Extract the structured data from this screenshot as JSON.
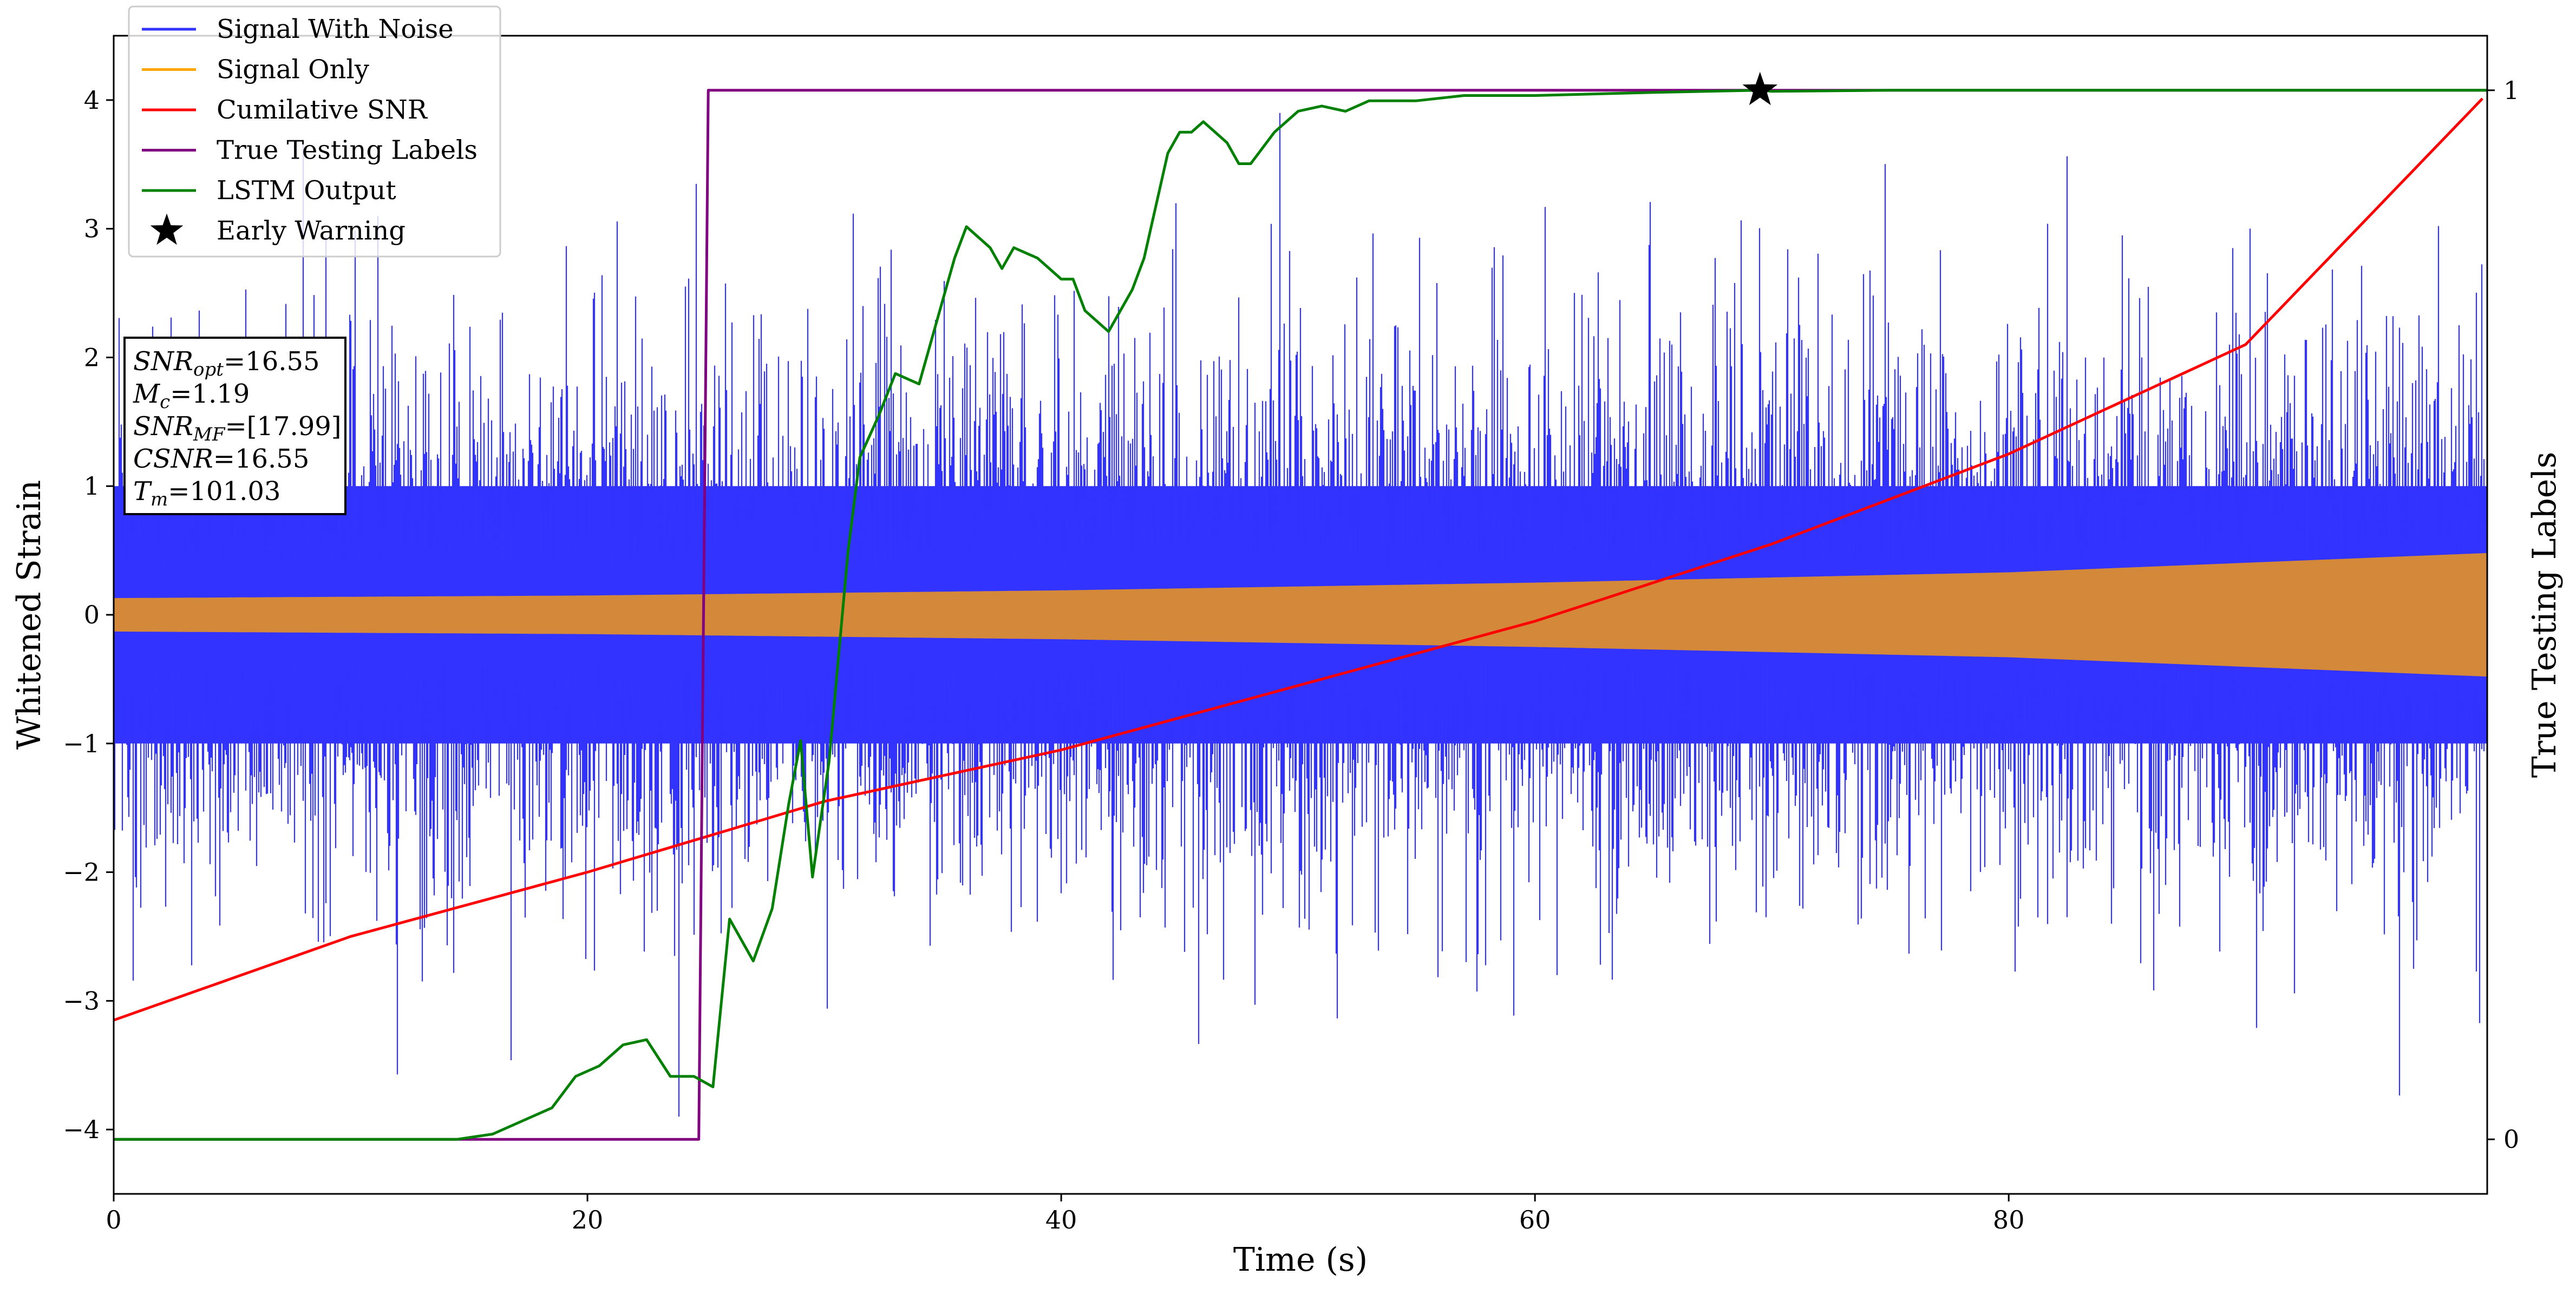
{
  "chart_data": {
    "type": "line",
    "xlabel": "Time (s)",
    "ylabel": "Whitened Strain",
    "y2label": "True Testing Labels",
    "xlim": [
      0,
      100.2
    ],
    "ylim": [
      -4.5,
      4.5
    ],
    "y2lim": [
      -0.052,
      1.052
    ],
    "xticks": [
      0,
      20,
      40,
      60,
      80
    ],
    "yticks": [
      -4,
      -3,
      -2,
      -1,
      0,
      1,
      2,
      3,
      4
    ],
    "y2ticks": [
      0,
      1
    ],
    "legend_position": "top-left",
    "grid": false,
    "legend": [
      {
        "name": "Signal With Noise",
        "color": "#3333ff",
        "marker": "line"
      },
      {
        "name": "Signal Only",
        "color": "#ffa500",
        "marker": "line"
      },
      {
        "name": "Cumilative SNR",
        "color": "#ff0000",
        "marker": "line"
      },
      {
        "name": "True Testing Labels",
        "color": "#800080",
        "marker": "line"
      },
      {
        "name": "LSTM Output",
        "color": "#008000",
        "marker": "line"
      },
      {
        "name": "Early Warning",
        "color": "#000000",
        "marker": "star"
      }
    ],
    "annotation_box": [
      {
        "base": "SNR",
        "sub": "opt",
        "value": "=16.55"
      },
      {
        "base": "M",
        "sub": "c",
        "value": "=1.19"
      },
      {
        "base": "SNR",
        "sub": "MF",
        "value": "=[17.99]"
      },
      {
        "base": "CSNR",
        "sub": "",
        "value": "=16.55"
      },
      {
        "base": "T",
        "sub": "m",
        "value": "=101.03"
      }
    ],
    "series": [
      {
        "name": "Signal With Noise",
        "axis": "left",
        "kind": "noise_band",
        "color": "#3333ff",
        "t_range": [
          0,
          100.2
        ],
        "core_half_width": 1.0,
        "spike_max": 3.9
      },
      {
        "name": "Signal Only",
        "axis": "left",
        "kind": "chirp_envelope",
        "color": "#d4893a",
        "t": [
          0,
          20,
          40,
          60,
          80,
          100.2
        ],
        "amplitude": [
          0.13,
          0.15,
          0.19,
          0.25,
          0.33,
          0.48
        ]
      },
      {
        "name": "Cumilative SNR",
        "axis": "left",
        "color": "#ff0000",
        "t": [
          0,
          10,
          20,
          30,
          40,
          50,
          60,
          70,
          80,
          90,
          100.2
        ],
        "y": [
          -3.15,
          -2.5,
          -2.0,
          -1.45,
          -1.05,
          -0.55,
          -0.05,
          0.55,
          1.25,
          2.1,
          4.05
        ]
      },
      {
        "name": "True Testing Labels",
        "axis": "right",
        "color": "#800080",
        "t": [
          0,
          24.7,
          25.1,
          100.2
        ],
        "y": [
          0,
          0,
          1,
          1
        ]
      },
      {
        "name": "LSTM Output",
        "axis": "right",
        "color": "#008000",
        "t": [
          0,
          14.5,
          16,
          17.5,
          18.5,
          19.5,
          20.5,
          21.5,
          22.5,
          23.5,
          24.5,
          25.3,
          26,
          27,
          27.8,
          28.5,
          29,
          29.5,
          30.2,
          31,
          31.5,
          32.3,
          33,
          34,
          35,
          35.5,
          36,
          37,
          37.5,
          38,
          39,
          40,
          40.5,
          41,
          42,
          43,
          43.5,
          44,
          44.5,
          45,
          45.5,
          46,
          47,
          47.5,
          48,
          49,
          50,
          51,
          52,
          53,
          55,
          57,
          60,
          65,
          69.5,
          70,
          75,
          80,
          90,
          100.2
        ],
        "y": [
          0,
          0,
          0.005,
          0.02,
          0.03,
          0.06,
          0.07,
          0.09,
          0.095,
          0.06,
          0.06,
          0.05,
          0.21,
          0.17,
          0.22,
          0.32,
          0.38,
          0.25,
          0.36,
          0.56,
          0.65,
          0.69,
          0.73,
          0.72,
          0.8,
          0.84,
          0.87,
          0.85,
          0.83,
          0.85,
          0.84,
          0.82,
          0.82,
          0.79,
          0.77,
          0.81,
          0.84,
          0.89,
          0.94,
          0.96,
          0.96,
          0.97,
          0.95,
          0.93,
          0.93,
          0.96,
          0.98,
          0.985,
          0.98,
          0.99,
          0.99,
          0.995,
          0.995,
          0.998,
          1.0,
          0.999,
          1.0,
          1.0,
          1.0,
          1.0
        ]
      },
      {
        "name": "Early Warning",
        "axis": "right",
        "kind": "marker",
        "color": "#000000",
        "t": [
          69.5
        ],
        "y": [
          1.0
        ]
      }
    ]
  }
}
